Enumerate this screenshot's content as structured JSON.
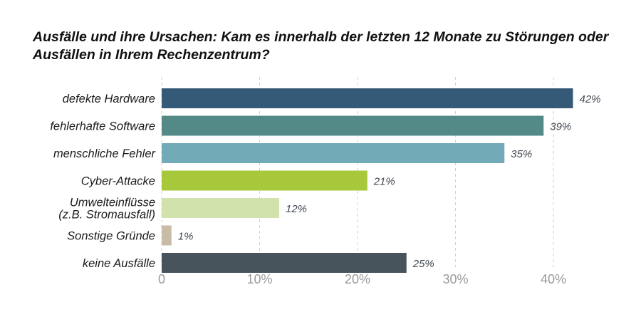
{
  "title": "Ausfälle und ihre Ursachen: Kam es innerhalb der letzten 12 Monate zu Störungen oder Ausfällen in Ihrem Rechenzentrum?",
  "chart_data": {
    "type": "bar",
    "orientation": "horizontal",
    "title": "Ausfälle und ihre Ursachen: Kam es innerhalb der letzten 12 Monate zu Störungen oder Ausfällen in Ihrem Rechenzentrum?",
    "categories": [
      [
        "defekte Hardware"
      ],
      [
        "fehlerhafte Software"
      ],
      [
        "menschliche Fehler"
      ],
      [
        "Cyber-Attacke"
      ],
      [
        "Umwelteinflüsse",
        "(z.B. Stromausfall)"
      ],
      [
        "Sonstige Gründe"
      ],
      [
        "keine Ausfälle"
      ]
    ],
    "values": [
      42,
      39,
      35,
      21,
      12,
      1,
      25
    ],
    "value_labels": [
      "42%",
      "39%",
      "35%",
      "21%",
      "12%",
      "1%",
      "25%"
    ],
    "colors": [
      "#355a78",
      "#538a87",
      "#72aab7",
      "#a7c83b",
      "#d1e2ac",
      "#c9bca6",
      "#47545b"
    ],
    "xlim": [
      0,
      45
    ],
    "xticks": [
      0,
      10,
      20,
      30,
      40
    ],
    "xtick_labels": [
      "0",
      "10%",
      "20%",
      "30%",
      "40%"
    ],
    "grid": true
  }
}
